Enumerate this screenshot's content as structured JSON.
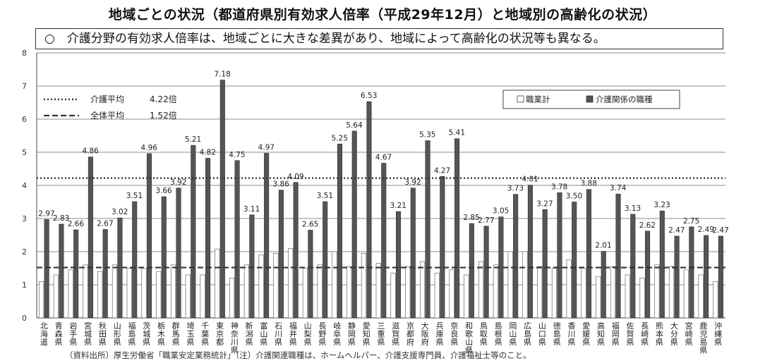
{
  "title": "地域ごとの状況（都道府県別有効求人倍率（平成29年12月）と地域別の高齢化の状況）",
  "subtitle": "○　介護分野の有効求人倍率は、地域ごとに大きな差異があり、地域によって高齢化の状況等も異なる。",
  "footnote": "（資料出所）厚生労働省「職業安定業務統計」（注）介護関連職種は、ホームヘルパー、介護支援専門員、介護福祉士等のこと。",
  "chart_data": {
    "type": "bar",
    "ylim": [
      0,
      8
    ],
    "yticks": [
      "0",
      "1",
      "2",
      "3",
      "4",
      "5",
      "6",
      "7",
      "8"
    ],
    "grid": true,
    "legend_position": "top-right",
    "categories": [
      "北海道",
      "青森県",
      "岩手県",
      "宮城県",
      "秋田県",
      "山形県",
      "福島県",
      "茨城県",
      "栃木県",
      "群馬県",
      "埼玉県",
      "千葉県",
      "東京都",
      "神奈川県",
      "新潟県",
      "富山県",
      "石川県",
      "福井県",
      "山梨県",
      "長野県",
      "岐阜県",
      "静岡県",
      "愛知県",
      "三重県",
      "滋賀県",
      "京都府",
      "大阪府",
      "兵庫県",
      "奈良県",
      "和歌山県",
      "鳥取県",
      "島根県",
      "岡山県",
      "広島県",
      "山口県",
      "徳島県",
      "香川県",
      "愛媛県",
      "高知県",
      "福岡県",
      "佐賀県",
      "長崎県",
      "熊本県",
      "大分県",
      "宮崎県",
      "鹿児島県",
      "沖縄県"
    ],
    "series": [
      {
        "name": "職業計",
        "color": "#ffffff",
        "values": [
          1.1,
          1.3,
          1.45,
          1.6,
          1.4,
          1.6,
          1.5,
          1.5,
          1.4,
          1.6,
          1.3,
          1.3,
          2.08,
          1.2,
          1.6,
          1.9,
          1.95,
          2.1,
          1.5,
          1.6,
          2.0,
          1.55,
          1.95,
          1.65,
          1.35,
          1.55,
          1.7,
          1.35,
          1.45,
          1.3,
          1.7,
          1.6,
          2.0,
          2.0,
          1.55,
          1.5,
          1.75,
          1.5,
          1.25,
          1.55,
          1.3,
          1.2,
          1.6,
          1.55,
          1.45,
          1.3,
          1.1
        ]
      },
      {
        "name": "介護関係の職種",
        "color": "#555555",
        "values": [
          2.97,
          2.83,
          2.66,
          4.86,
          2.67,
          3.02,
          3.51,
          4.96,
          3.66,
          3.92,
          5.21,
          4.82,
          7.18,
          4.75,
          3.11,
          4.97,
          3.86,
          4.09,
          2.65,
          3.51,
          5.25,
          5.64,
          6.53,
          4.67,
          3.21,
          3.92,
          5.35,
          4.27,
          5.41,
          2.85,
          2.77,
          3.05,
          3.73,
          4.01,
          3.27,
          3.78,
          3.5,
          3.88,
          2.01,
          3.74,
          3.13,
          2.62,
          3.23,
          2.47,
          2.75,
          2.49,
          2.47
        ],
        "labels": [
          "2.97",
          "2.83",
          "2.66",
          "4.86",
          "2.67",
          "3.02",
          "3.51",
          "4.96",
          "3.66",
          "3.92",
          "5.21",
          "4.82",
          "7.18",
          "4.75",
          "3.11",
          "4.97",
          "3.86",
          "4.09",
          "2.65",
          "3.51",
          "5.25",
          "5.64",
          "6.53",
          "4.67",
          "3.21",
          "3.92",
          "5.35",
          "4.27",
          "5.41",
          "2.85",
          "2.77",
          "3.05",
          "3.73",
          "4.01",
          "3.27",
          "3.78",
          "3.50",
          "3.88",
          "2.01",
          "3.74",
          "3.13",
          "2.62",
          "3.23",
          "2.47",
          "2.75",
          "2.49",
          "2.47"
        ]
      }
    ],
    "reference_lines": [
      {
        "name": "介護平均",
        "value": 4.22,
        "label": "4.22倍",
        "style": "dotted"
      },
      {
        "name": "全体平均",
        "value": 1.52,
        "label": "1.52倍",
        "style": "dashed"
      }
    ]
  }
}
